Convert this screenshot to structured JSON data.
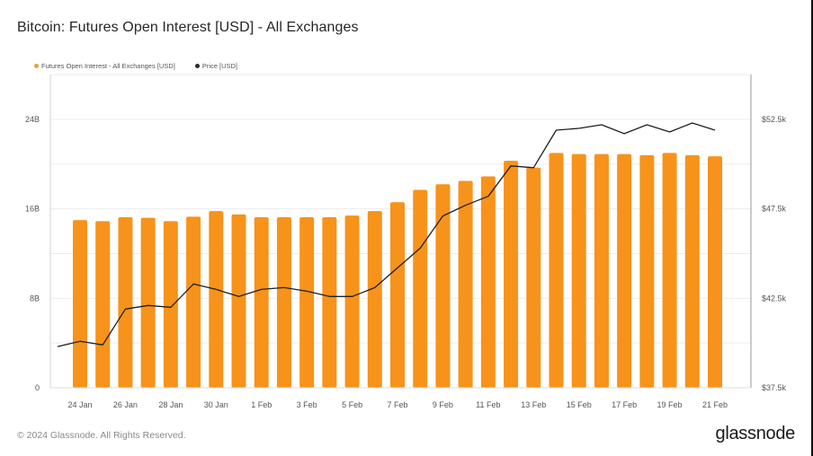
{
  "header": {
    "title": "Bitcoin: Futures Open Interest [USD] - All Exchanges"
  },
  "legend": [
    {
      "label": "Futures Open Interest - All Exchanges [USD]",
      "color": "#f7931a"
    },
    {
      "label": "Price [USD]",
      "color": "#2b2b2b"
    }
  ],
  "footer": {
    "copyright": "© 2024 Glassnode. All Rights Reserved.",
    "logo": "glassnode"
  },
  "colors": {
    "bar": "#f7931a",
    "line": "#1f1f24",
    "grid": "#ececec",
    "axis": "#d8d0c8"
  },
  "chart_data": {
    "type": "bar",
    "title": "Bitcoin: Futures Open Interest [USD] - All Exchanges",
    "xlabel": "",
    "ylabel": "Futures Open Interest [USD]",
    "y2label": "Price [USD]",
    "ylim": [
      0,
      24
    ],
    "y2lim": [
      37.5,
      52.5
    ],
    "grid": true,
    "legend_position": "top-left",
    "y_ticks": [
      "0",
      "8B",
      "16B",
      "24B"
    ],
    "y2_ticks": [
      "$37.5k",
      "$42.5k",
      "$47.5k",
      "$52.5k"
    ],
    "x_tick_labels": [
      "24 Jan",
      "26 Jan",
      "28 Jan",
      "30 Jan",
      "1 Feb",
      "3 Feb",
      "5 Feb",
      "7 Feb",
      "9 Feb",
      "11 Feb",
      "13 Feb",
      "15 Feb",
      "17 Feb",
      "19 Feb",
      "21 Feb"
    ],
    "categories": [
      "24 Jan",
      "25 Jan",
      "26 Jan",
      "27 Jan",
      "28 Jan",
      "29 Jan",
      "30 Jan",
      "31 Jan",
      "1 Feb",
      "2 Feb",
      "3 Feb",
      "4 Feb",
      "5 Feb",
      "6 Feb",
      "7 Feb",
      "8 Feb",
      "9 Feb",
      "10 Feb",
      "11 Feb",
      "12 Feb",
      "13 Feb",
      "14 Feb",
      "15 Feb",
      "16 Feb",
      "17 Feb",
      "18 Feb",
      "19 Feb",
      "20 Feb",
      "21 Feb"
    ],
    "series": [
      {
        "name": "Futures Open Interest - All Exchanges [USD]",
        "type": "bar",
        "axis": "left",
        "unit": "B USD",
        "values": [
          15.0,
          14.9,
          15.25,
          15.2,
          14.9,
          15.3,
          15.8,
          15.5,
          15.25,
          15.25,
          15.25,
          15.25,
          15.4,
          15.8,
          16.6,
          17.7,
          18.2,
          18.5,
          18.9,
          20.3,
          19.7,
          21.0,
          20.9,
          20.9,
          20.9,
          20.8,
          21.0,
          20.8,
          20.7
        ]
      },
      {
        "name": "Price [USD]",
        "type": "line",
        "axis": "right",
        "unit": "k USD",
        "start_value": 39.8,
        "values": [
          40.1,
          39.9,
          41.9,
          42.1,
          42.0,
          43.3,
          43.0,
          42.6,
          43.0,
          43.1,
          42.9,
          42.6,
          42.6,
          43.1,
          44.2,
          45.3,
          47.1,
          47.7,
          48.2,
          49.9,
          49.8,
          51.9,
          52.0,
          52.2,
          51.7,
          52.2,
          51.8,
          52.3,
          51.9
        ]
      }
    ]
  }
}
